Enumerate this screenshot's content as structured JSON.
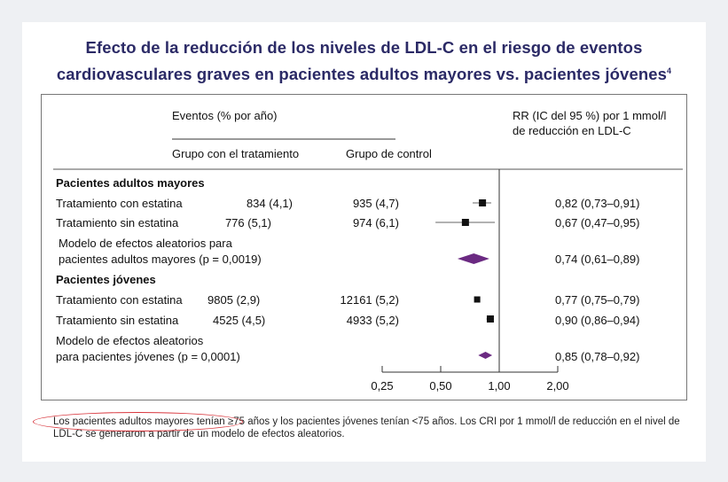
{
  "title": "Efecto de la reducción de los niveles de LDL-C en el riesgo de eventos cardiovasculares graves en pacientes adultos mayores vs. pacientes jóvenes",
  "title_line1": "Efecto de la reducción de los niveles de LDL-C en el riesgo de eventos",
  "title_line2": "cardiovasculares graves en pacientes adultos mayores vs. pacientes jóvenes",
  "title_sup": "4",
  "headers": {
    "events": "Eventos (% por año)",
    "treatment_group": "Grupo con el tratamiento",
    "control_group": "Grupo de control",
    "rr_line1": "RR (IC del 95 %) por 1 mmol/l",
    "rr_line2": "de reducción en LDL-C"
  },
  "footnote": "Los pacientes adultos mayores tenían ≥75 años y los pacientes jóvenes tenían <75 años. Los CRI por 1 mmol/l de reducción en el nivel de LDL-C se generaron a partir de un modelo de efectos aleatorios.",
  "colors": {
    "title": "#2b2a66",
    "diamond": "#6b2a82",
    "marker": "#111111",
    "highlight": "#d8343b"
  },
  "chart_data": {
    "type": "forest",
    "x_axis": {
      "scale": "log",
      "ticks": [
        0.25,
        0.5,
        1.0,
        2.0
      ],
      "tick_labels": [
        "0,25",
        "0,50",
        "1,00",
        "2,00"
      ],
      "reference": 1.0
    },
    "groups": [
      {
        "label": "Pacientes adultos mayores",
        "rows": [
          {
            "label": "Tratamiento con estatina",
            "treatment": "834 (4,1)",
            "control": "935 (4,7)",
            "rr": 0.82,
            "lo": 0.73,
            "hi": 0.91,
            "rr_text": "0,82 (0,73–0,91)",
            "kind": "square"
          },
          {
            "label": "Tratamiento sin estatina",
            "treatment": "776 (5,1)",
            "control": "974 (6,1)",
            "rr": 0.67,
            "lo": 0.47,
            "hi": 0.95,
            "rr_text": "0,67 (0,47–0,95)",
            "kind": "square"
          }
        ],
        "summary": {
          "label_line1": "Modelo de efectos aleatorios para",
          "label_line2": "pacientes adultos mayores (p = 0,0019)",
          "rr": 0.74,
          "lo": 0.61,
          "hi": 0.89,
          "rr_text": "0,74 (0,61–0,89)",
          "kind": "diamond"
        }
      },
      {
        "label": "Pacientes jóvenes",
        "rows": [
          {
            "label": "Tratamiento con estatina",
            "treatment": "9805 (2,9)",
            "control": "12161 (5,2)",
            "rr": 0.77,
            "lo": 0.75,
            "hi": 0.79,
            "rr_text": "0,77 (0,75–0,79)",
            "kind": "square"
          },
          {
            "label": "Tratamiento sin estatina",
            "treatment": "4525 (4,5)",
            "control": "4933 (5,2)",
            "rr": 0.9,
            "lo": 0.86,
            "hi": 0.94,
            "rr_text": "0,90 (0,86–0,94)",
            "kind": "square"
          }
        ],
        "summary": {
          "label_line1": "Modelo de efectos aleatorios",
          "label_line2": "para pacientes jóvenes (p = 0,0001)",
          "rr": 0.85,
          "lo": 0.78,
          "hi": 0.92,
          "rr_text": "0,85 (0,78–0,92)",
          "kind": "diamond"
        }
      }
    ]
  }
}
